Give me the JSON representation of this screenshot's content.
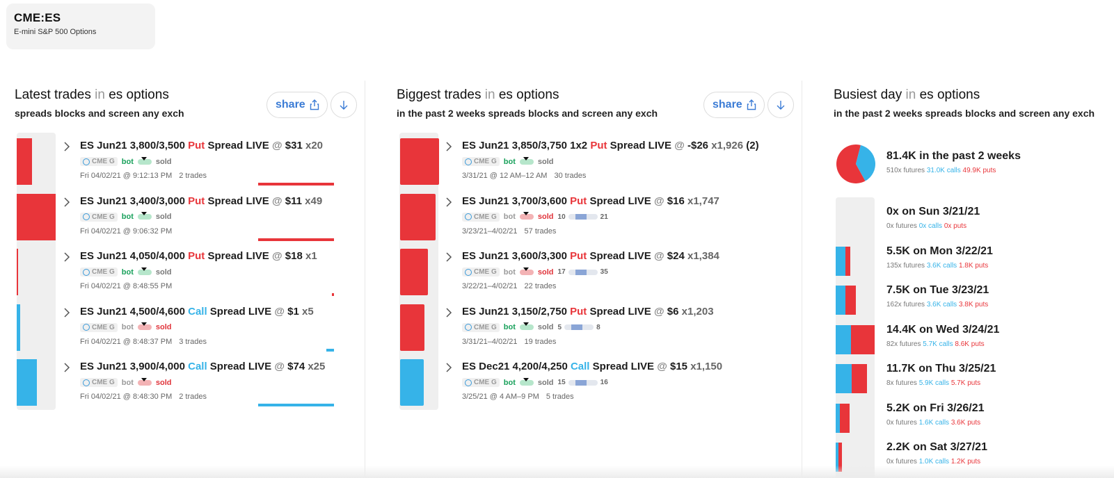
{
  "ticker": {
    "symbol": "CME:ES",
    "name": "E-mini S&P 500 Options"
  },
  "colors": {
    "put": "#e8353a",
    "call": "#36b3e8",
    "bot": "#17a05a",
    "share": "#3a7bd5"
  },
  "latest": {
    "title_main": "Latest trades",
    "title_in": "in",
    "title_product": "es options",
    "subtitle": "spreads blocks and screen any exch",
    "share_label": "share",
    "trades": [
      {
        "side": "put",
        "pre": "ES Jun21 3,800/3,500",
        "kind": "Put",
        "post": "Spread LIVE",
        "at": "@",
        "price": "$31",
        "qty": "x20",
        "extra": "",
        "exch": "CME G",
        "bot": "bot",
        "sold": "sold",
        "bot_active": true,
        "sold_active": false,
        "time": "Fri 04/02/21 @ 9:12:13 PM",
        "trades": "2 trades",
        "bar": 0.39,
        "line": 0.69
      },
      {
        "side": "put",
        "pre": "ES Jun21 3,400/3,000",
        "kind": "Put",
        "post": "Spread LIVE",
        "at": "@",
        "price": "$11",
        "qty": "x49",
        "extra": "",
        "exch": "CME G",
        "bot": "bot",
        "sold": "sold",
        "bot_active": true,
        "sold_active": false,
        "time": "Fri 04/02/21 @ 9:06:32 PM",
        "trades": "",
        "bar": 1.0,
        "line": 0.69
      },
      {
        "side": "put",
        "pre": "ES Jun21 4,050/4,000",
        "kind": "Put",
        "post": "Spread LIVE",
        "at": "@",
        "price": "$18",
        "qty": "x1",
        "extra": "",
        "exch": "CME G",
        "bot": "bot",
        "sold": "sold",
        "bot_active": true,
        "sold_active": false,
        "time": "Fri 04/02/21 @ 8:48:55 PM",
        "trades": "",
        "bar": 0.04,
        "line": 0.01
      },
      {
        "side": "call",
        "pre": "ES Jun21 4,500/4,600",
        "kind": "Call",
        "post": "Spread LIVE",
        "at": "@",
        "price": "$1",
        "qty": "x5",
        "extra": "",
        "exch": "CME G",
        "bot": "bot",
        "sold": "sold",
        "bot_active": false,
        "sold_active": true,
        "time": "Fri 04/02/21 @ 8:48:37 PM",
        "trades": "3 trades",
        "bar": 0.09,
        "line": 0.07
      },
      {
        "side": "call",
        "pre": "ES Jun21 3,900/4,000",
        "kind": "Call",
        "post": "Spread LIVE",
        "at": "@",
        "price": "$74",
        "qty": "x25",
        "extra": "",
        "exch": "CME G",
        "bot": "bot",
        "sold": "sold",
        "bot_active": false,
        "sold_active": true,
        "time": "Fri 04/02/21 @ 8:48:30 PM",
        "trades": "2 trades",
        "bar": 0.51,
        "line": 0.69
      }
    ]
  },
  "biggest": {
    "title_main": "Biggest trades",
    "title_in": "in",
    "title_product": "es options",
    "subtitle": "in the past 2 weeks  spreads blocks and screen any exch",
    "share_label": "share",
    "trades": [
      {
        "side": "put",
        "pre": "ES Jun21 3,850/3,750 1x2",
        "kind": "Put",
        "post": "Spread LIVE",
        "at": "@",
        "price": "-$26",
        "qty": "x1,926",
        "extra": "(2)",
        "exch": "CME G",
        "bot": "bot",
        "sold": "sold",
        "bot_active": true,
        "sold_active": false,
        "range_lo": "",
        "range_hi": "",
        "time": "3/31/21 @ 12 AM–12 AM",
        "trades": "30 trades",
        "bar": 1.0
      },
      {
        "side": "put",
        "pre": "ES Jun21 3,700/3,600",
        "kind": "Put",
        "post": "Spread LIVE",
        "at": "@",
        "price": "$16",
        "qty": "x1,747",
        "extra": "",
        "exch": "CME G",
        "bot": "bot",
        "sold": "sold",
        "bot_active": false,
        "sold_active": true,
        "range_lo": "10",
        "range_hi": "21",
        "time": "3/23/21–4/02/21",
        "trades": "57 trades",
        "bar": 0.91
      },
      {
        "side": "put",
        "pre": "ES Jun21 3,600/3,300",
        "kind": "Put",
        "post": "Spread LIVE",
        "at": "@",
        "price": "$24",
        "qty": "x1,384",
        "extra": "",
        "exch": "CME G",
        "bot": "bot",
        "sold": "sold",
        "bot_active": false,
        "sold_active": true,
        "range_lo": "17",
        "range_hi": "35",
        "time": "3/22/21–4/02/21",
        "trades": "22 trades",
        "bar": 0.72
      },
      {
        "side": "put",
        "pre": "ES Jun21 3,150/2,750",
        "kind": "Put",
        "post": "Spread LIVE",
        "at": "@",
        "price": "$6",
        "qty": "x1,203",
        "extra": "",
        "exch": "CME G",
        "bot": "bot",
        "sold": "sold",
        "bot_active": true,
        "sold_active": false,
        "range_lo": "5",
        "range_hi": "8",
        "time": "3/31/21–4/02/21",
        "trades": "19 trades",
        "bar": 0.62
      },
      {
        "side": "call",
        "pre": "ES Dec21 4,200/4,250",
        "kind": "Call",
        "post": "Spread LIVE",
        "at": "@",
        "price": "$15",
        "qty": "x1,150",
        "extra": "",
        "exch": "CME G",
        "bot": "bot",
        "sold": "sold",
        "bot_active": true,
        "sold_active": false,
        "range_lo": "15",
        "range_hi": "16",
        "time": "3/25/21 @ 4 AM–9 PM",
        "trades": "5 trades",
        "bar": 0.6
      }
    ]
  },
  "busiest": {
    "title_main": "Busiest day",
    "title_in": "in",
    "title_product": "es options",
    "subtitle": "in the past 2 weeks  spreads blocks and screen any exch",
    "summary": {
      "title": "81.4K in the past 2 weeks",
      "futures": "510x futures",
      "calls": "31.0K calls",
      "puts": "49.9K puts",
      "call_share": 0.38
    },
    "days": [
      {
        "title": "0x on Sun 3/21/21",
        "futures": "0x futures",
        "calls": "0x calls",
        "puts": "0x puts",
        "calls_k": 0,
        "puts_k": 0
      },
      {
        "title": "5.5K on Mon 3/22/21",
        "futures": "135x futures",
        "calls": "3.6K calls",
        "puts": "1.8K puts",
        "calls_k": 3.6,
        "puts_k": 1.8
      },
      {
        "title": "7.5K on Tue 3/23/21",
        "futures": "162x futures",
        "calls": "3.6K calls",
        "puts": "3.8K puts",
        "calls_k": 3.6,
        "puts_k": 3.8
      },
      {
        "title": "14.4K on Wed 3/24/21",
        "futures": "82x futures",
        "calls": "5.7K calls",
        "puts": "8.6K puts",
        "calls_k": 5.7,
        "puts_k": 8.6
      },
      {
        "title": "11.7K on Thu 3/25/21",
        "futures": "8x futures",
        "calls": "5.9K calls",
        "puts": "5.7K puts",
        "calls_k": 5.9,
        "puts_k": 5.7
      },
      {
        "title": "5.2K on Fri 3/26/21",
        "futures": "0x futures",
        "calls": "1.6K calls",
        "puts": "3.6K puts",
        "calls_k": 1.6,
        "puts_k": 3.6
      },
      {
        "title": "2.2K on Sat 3/27/21",
        "futures": "0x futures",
        "calls": "1.0K calls",
        "puts": "1.2K puts",
        "calls_k": 1.0,
        "puts_k": 1.2
      }
    ]
  }
}
